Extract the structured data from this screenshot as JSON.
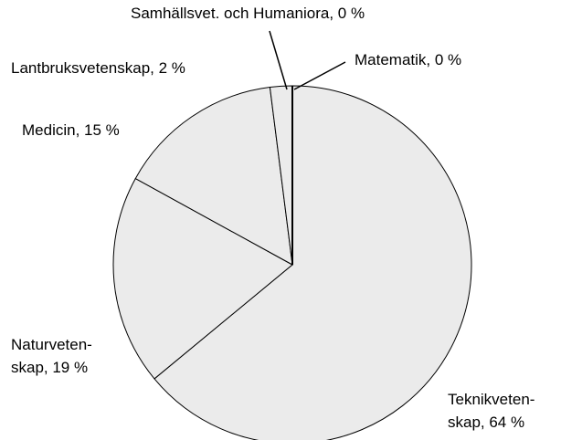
{
  "chart_data": {
    "type": "pie",
    "values": [
      64,
      19,
      15,
      2,
      0,
      0
    ],
    "value_labels": [
      "Teknikveten-\nskap, 64 %",
      "Naturveten-\nskap, 19 %",
      "Medicin, 15 %",
      "Lantbruksvetenskap, 2 %",
      "Samhällsvet. och Humaniora, 0 %",
      "Matematik, 0 %"
    ],
    "color": "#ebebeb"
  }
}
